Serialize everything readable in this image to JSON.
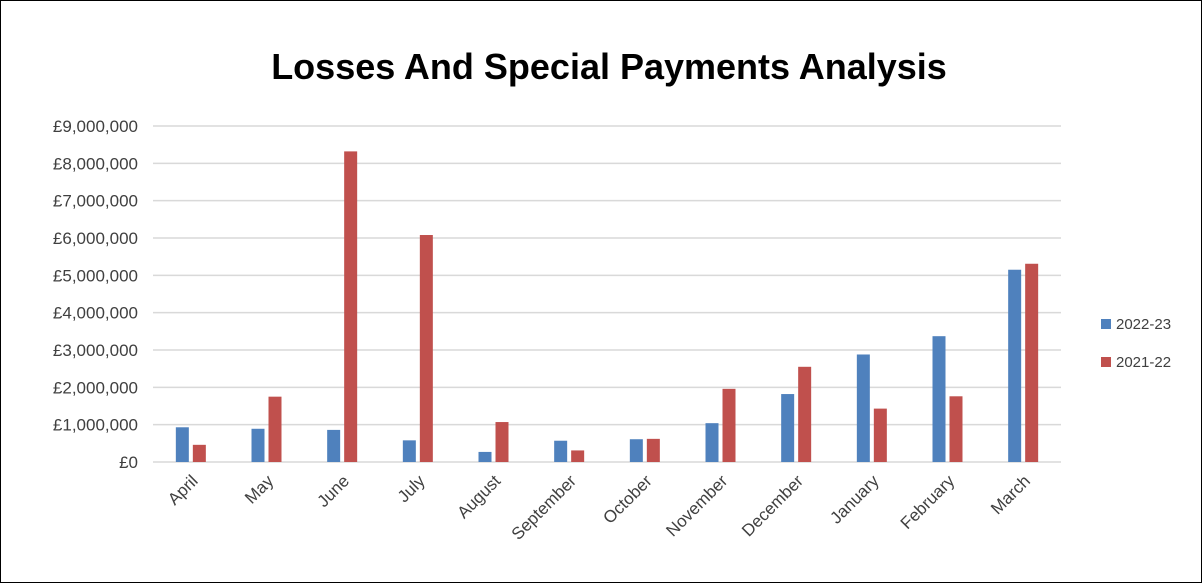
{
  "chart_data": {
    "type": "bar",
    "title": "Losses And Special Payments Analysis",
    "xlabel": "",
    "ylabel": "",
    "categories": [
      "April",
      "May",
      "June",
      "July",
      "August",
      "September",
      "October",
      "November",
      "December",
      "January",
      "February",
      "March"
    ],
    "series": [
      {
        "name": "2022-23",
        "color": "#4f81bd",
        "values": [
          930000,
          890000,
          860000,
          580000,
          270000,
          570000,
          610000,
          1040000,
          1820000,
          2880000,
          3370000,
          5150000
        ]
      },
      {
        "name": "2021-22",
        "color": "#c0504d",
        "values": [
          460000,
          1750000,
          8320000,
          6080000,
          1070000,
          310000,
          620000,
          1960000,
          2550000,
          1430000,
          1760000,
          5310000
        ]
      }
    ],
    "ylim": [
      0,
      9000000
    ],
    "y_ticks": [
      0,
      1000000,
      2000000,
      3000000,
      4000000,
      5000000,
      6000000,
      7000000,
      8000000,
      9000000
    ],
    "y_tick_labels": [
      "£0",
      "£1,000,000",
      "£2,000,000",
      "£3,000,000",
      "£4,000,000",
      "£5,000,000",
      "£6,000,000",
      "£7,000,000",
      "£8,000,000",
      "£9,000,000"
    ],
    "grid": true,
    "legend": "right"
  }
}
